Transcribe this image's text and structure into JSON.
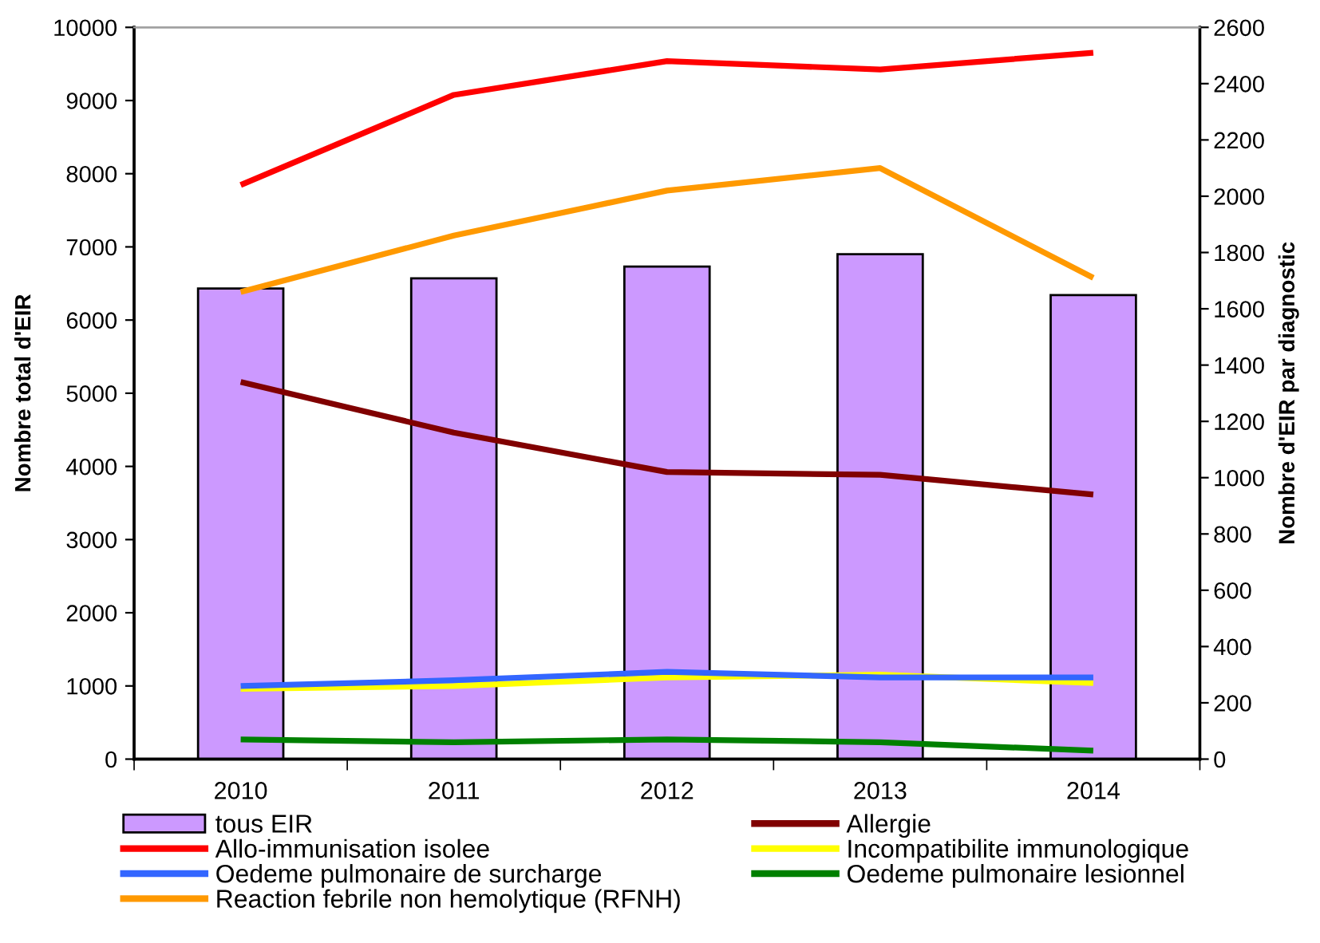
{
  "chart_data": {
    "type": "bar",
    "categories": [
      "2010",
      "2011",
      "2012",
      "2013",
      "2014"
    ],
    "ylabel": "Nombre total d'EIR",
    "y2label": "Nombre d'EIR par diagnostic",
    "ylim": [
      0,
      10000
    ],
    "yticks": [
      0,
      1000,
      2000,
      3000,
      4000,
      5000,
      6000,
      7000,
      8000,
      9000,
      10000
    ],
    "y2lim": [
      0,
      2600
    ],
    "y2ticks": [
      0,
      200,
      400,
      600,
      800,
      1000,
      1200,
      1400,
      1600,
      1800,
      2000,
      2200,
      2400,
      2600
    ],
    "grid": false,
    "legend": "bottom",
    "series": [
      {
        "name": "tous EIR",
        "color": "#cc99ff",
        "values": [
          6430,
          6570,
          6730,
          6900,
          6340
        ]
      },
      {
        "name": "Allergie",
        "type": "line",
        "axis": "y2",
        "color": "#800000",
        "values": [
          1340,
          1160,
          1020,
          1010,
          940
        ]
      },
      {
        "name": "Allo-immunisation isolee",
        "type": "line",
        "axis": "y2",
        "color": "#ff0000",
        "values": [
          2040,
          2360,
          2480,
          2450,
          2510
        ]
      },
      {
        "name": "Incompatibilite immunologique",
        "type": "line",
        "axis": "y2",
        "color": "#ffff00",
        "values": [
          250,
          260,
          290,
          300,
          270
        ]
      },
      {
        "name": "Oedeme pulmonaire de surcharge",
        "type": "line",
        "axis": "y2",
        "color": "#3366ff",
        "values": [
          260,
          280,
          310,
          290,
          290
        ]
      },
      {
        "name": "Oedeme pulmonaire lesionnel",
        "type": "line",
        "axis": "y2",
        "color": "#008000",
        "values": [
          70,
          60,
          70,
          60,
          30
        ]
      },
      {
        "name": "Reaction febrile non hemolytique (RFNH)",
        "type": "line",
        "axis": "y2",
        "color": "#ff9900",
        "values": [
          1660,
          1860,
          2020,
          2100,
          1710
        ]
      }
    ]
  }
}
